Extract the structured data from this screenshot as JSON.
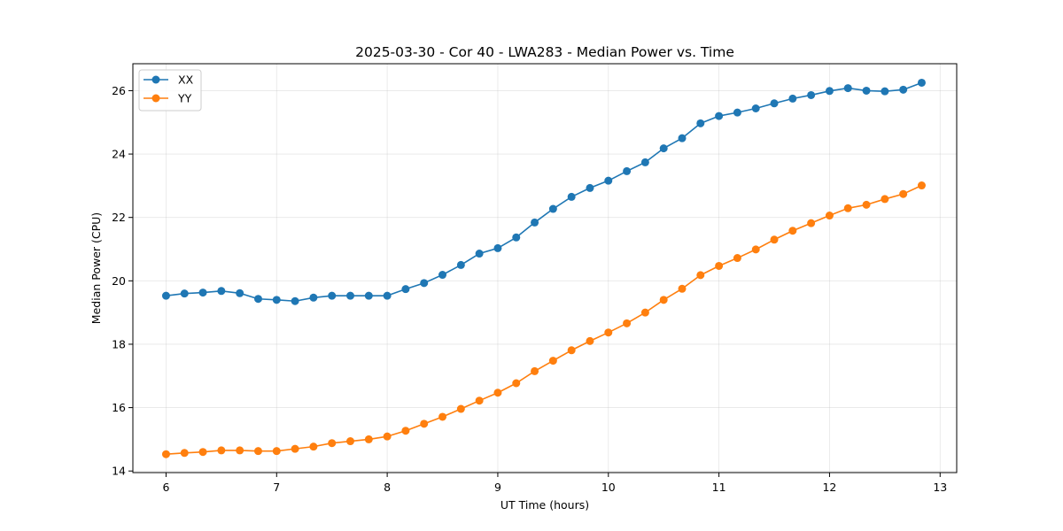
{
  "chart_data": {
    "type": "line",
    "title": "2025-03-30 - Cor 40 - LWA283 - Median Power vs. Time",
    "xlabel": "UT Time (hours)",
    "ylabel": "Median Power (CPU)",
    "xlim": [
      5.7,
      13.15
    ],
    "ylim": [
      13.95,
      26.85
    ],
    "xticks": [
      6,
      7,
      8,
      9,
      10,
      11,
      12,
      13
    ],
    "yticks": [
      14,
      16,
      18,
      20,
      22,
      24,
      26
    ],
    "grid": true,
    "legend_position": "top-left",
    "x": [
      6.0,
      6.1667,
      6.3333,
      6.5,
      6.6667,
      6.8333,
      7.0,
      7.1667,
      7.3333,
      7.5,
      7.6667,
      7.8333,
      8.0,
      8.1667,
      8.3333,
      8.5,
      8.6667,
      8.8333,
      9.0,
      9.1667,
      9.3333,
      9.5,
      9.6667,
      9.8333,
      10.0,
      10.1667,
      10.3333,
      10.5,
      10.6667,
      10.8333,
      11.0,
      11.1667,
      11.3333,
      11.5,
      11.6667,
      11.8333,
      12.0,
      12.1667,
      12.3333,
      12.5,
      12.6667,
      12.8333
    ],
    "series": [
      {
        "name": "XX",
        "color": "#1f77b4",
        "values": [
          19.53,
          19.6,
          19.63,
          19.68,
          19.61,
          19.43,
          19.4,
          19.36,
          19.47,
          19.53,
          19.53,
          19.53,
          19.53,
          19.74,
          19.93,
          20.19,
          20.5,
          20.86,
          21.03,
          21.37,
          21.84,
          22.27,
          22.65,
          22.93,
          23.16,
          23.46,
          23.74,
          24.18,
          24.5,
          24.97,
          25.2,
          25.31,
          25.44,
          25.6,
          25.75,
          25.86,
          25.99,
          26.08,
          26.0,
          25.98,
          26.03,
          26.25
        ]
      },
      {
        "name": "YY",
        "color": "#ff7f0e",
        "values": [
          14.53,
          14.57,
          14.6,
          14.65,
          14.65,
          14.63,
          14.63,
          14.7,
          14.77,
          14.88,
          14.94,
          15.0,
          15.09,
          15.27,
          15.49,
          15.71,
          15.96,
          16.22,
          16.47,
          16.77,
          17.15,
          17.48,
          17.81,
          18.1,
          18.37,
          18.66,
          19.0,
          19.4,
          19.75,
          20.18,
          20.47,
          20.72,
          20.99,
          21.3,
          21.58,
          21.82,
          22.06,
          22.29,
          22.4,
          22.58,
          22.74,
          23.01
        ]
      }
    ]
  }
}
